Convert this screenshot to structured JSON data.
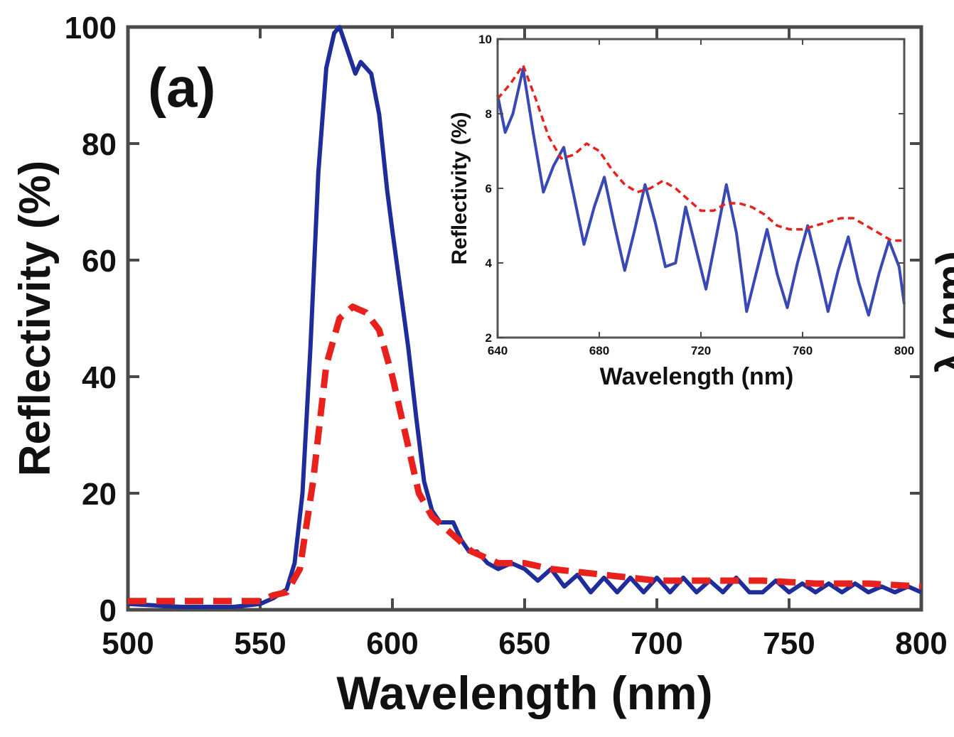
{
  "panel_label": "(a)",
  "right_axis_partial_label": "λ (nm)",
  "chart_data": [
    {
      "type": "line",
      "xlabel": "Wavelength (nm)",
      "ylabel": "Reflectivity (%)",
      "xlim": [
        500,
        800
      ],
      "ylim": [
        0,
        100
      ],
      "xticks": [
        500,
        550,
        600,
        650,
        700,
        750,
        800
      ],
      "yticks": [
        0,
        20,
        40,
        60,
        80,
        100
      ],
      "grid": false,
      "series": [
        {
          "style": "solid",
          "color": "#1f2d9b",
          "x": [
            500,
            520,
            540,
            550,
            555,
            560,
            563,
            566,
            569,
            572,
            575,
            578,
            580,
            583,
            586,
            588,
            590,
            592,
            595,
            598,
            600,
            603,
            606,
            609,
            612,
            615,
            618,
            620,
            623,
            626,
            629,
            632,
            636,
            640,
            645,
            650,
            655,
            660,
            665,
            670,
            675,
            680,
            685,
            690,
            695,
            700,
            705,
            710,
            715,
            720,
            725,
            730,
            735,
            740,
            745,
            750,
            755,
            760,
            765,
            770,
            775,
            780,
            785,
            790,
            795,
            800
          ],
          "y": [
            1,
            0.5,
            0.5,
            1,
            2,
            3.5,
            8,
            20,
            45,
            75,
            93,
            99,
            100,
            96,
            92,
            94,
            93,
            92,
            85,
            72,
            65,
            55,
            45,
            33,
            22,
            17,
            15,
            15,
            15,
            12,
            10,
            10,
            8,
            7,
            8,
            7,
            5,
            7,
            4,
            6,
            3,
            5.5,
            3,
            5.5,
            3,
            5.5,
            3,
            5.5,
            3,
            5,
            3,
            5.5,
            3,
            3,
            5,
            3,
            4.5,
            3,
            4.5,
            3,
            4.5,
            3,
            4,
            3,
            4,
            3
          ]
        },
        {
          "style": "dashed",
          "color": "#e8211c",
          "x": [
            500,
            520,
            540,
            550,
            555,
            560,
            565,
            570,
            575,
            580,
            585,
            590,
            595,
            600,
            605,
            610,
            615,
            620,
            625,
            630,
            635,
            640,
            645,
            650,
            660,
            670,
            680,
            690,
            700,
            720,
            740,
            760,
            780,
            800
          ],
          "y": [
            1.5,
            1.5,
            1.5,
            1.5,
            2.5,
            3,
            7,
            22,
            42,
            50,
            52,
            51,
            48,
            40,
            30,
            20,
            16,
            14,
            12,
            10,
            9,
            8,
            8,
            8,
            7,
            6.5,
            6,
            5.5,
            5,
            5,
            5,
            4.5,
            4.5,
            4
          ]
        }
      ]
    },
    {
      "type": "line",
      "xlabel": "Wavelength (nm)",
      "ylabel": "Reflectivity (%)",
      "xlim": [
        640,
        800
      ],
      "ylim": [
        2,
        10
      ],
      "xticks": [
        640,
        680,
        720,
        760,
        800
      ],
      "yticks": [
        2,
        4,
        6,
        8,
        10
      ],
      "grid": false,
      "series": [
        {
          "style": "solid",
          "color": "#3848b4",
          "x": [
            640,
            643,
            646,
            650,
            654,
            658,
            662,
            666,
            670,
            674,
            678,
            682,
            686,
            690,
            694,
            698,
            702,
            706,
            710,
            714,
            718,
            722,
            726,
            730,
            734,
            738,
            742,
            746,
            750,
            754,
            758,
            762,
            766,
            770,
            774,
            778,
            782,
            786,
            790,
            794,
            798,
            800
          ],
          "y": [
            8.5,
            7.5,
            8,
            9.2,
            7.5,
            5.9,
            6.6,
            7.1,
            5.8,
            4.5,
            5.5,
            6.3,
            5.0,
            3.8,
            4.9,
            6.1,
            5.1,
            3.9,
            4.0,
            5.5,
            4.4,
            3.3,
            4.7,
            6.1,
            4.8,
            2.7,
            3.8,
            4.9,
            3.7,
            2.8,
            4.0,
            5.0,
            3.9,
            2.7,
            3.8,
            4.7,
            3.5,
            2.6,
            3.7,
            4.6,
            3.9,
            2.9
          ]
        },
        {
          "style": "dashed",
          "color": "#e8211c",
          "x": [
            640,
            645,
            650,
            655,
            660,
            665,
            670,
            675,
            680,
            685,
            690,
            695,
            700,
            705,
            710,
            715,
            720,
            725,
            730,
            735,
            740,
            745,
            750,
            755,
            760,
            765,
            770,
            775,
            780,
            785,
            790,
            795,
            800
          ],
          "y": [
            8.4,
            8.8,
            9.3,
            8.4,
            7.4,
            6.8,
            6.9,
            7.2,
            7.0,
            6.5,
            6.1,
            5.9,
            6.0,
            6.2,
            6.0,
            5.7,
            5.4,
            5.4,
            5.6,
            5.6,
            5.5,
            5.3,
            5.0,
            4.9,
            4.9,
            5.0,
            5.1,
            5.2,
            5.2,
            5.0,
            4.8,
            4.6,
            4.6
          ]
        }
      ]
    }
  ]
}
